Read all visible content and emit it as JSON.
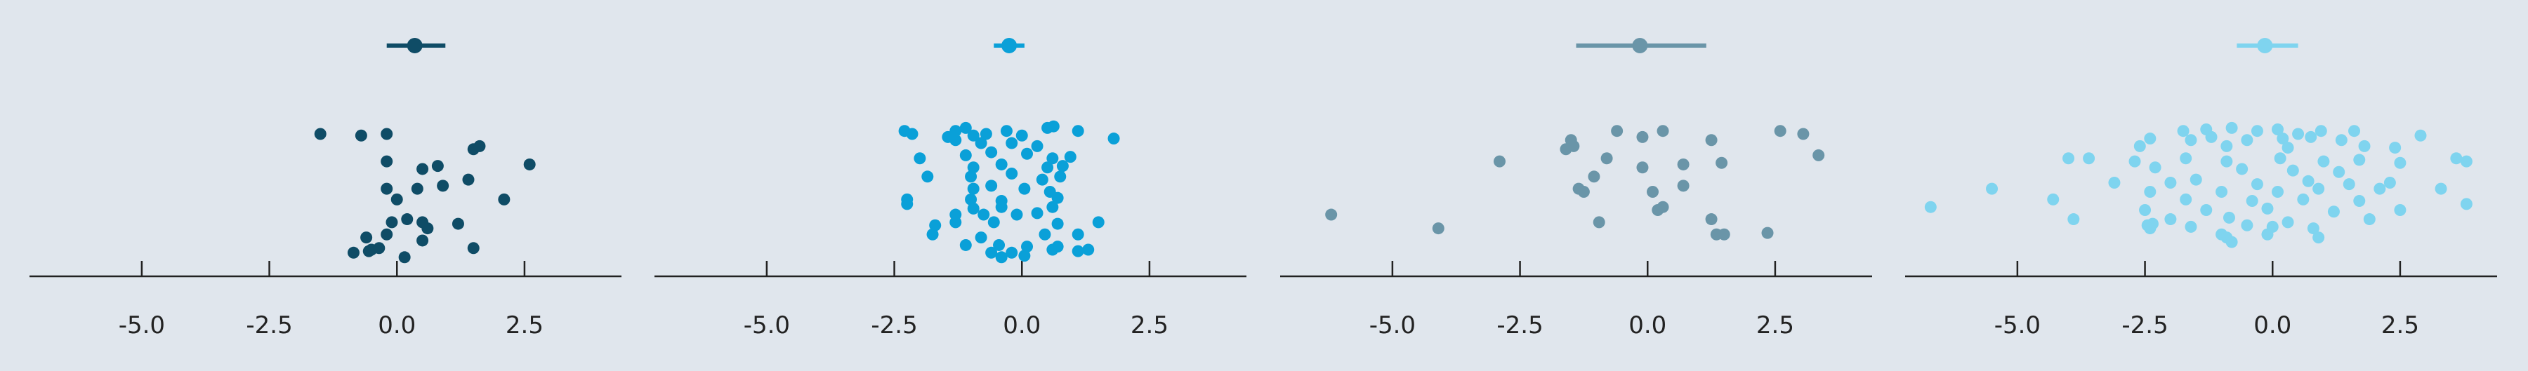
{
  "background": "#e0e6ed",
  "axis_color": "#222222",
  "chart_data": [
    {
      "type": "scatter",
      "subtype": "strip-plot-with-mean-ci",
      "color": "#0f4c66",
      "xlim": [
        -7.2,
        4.4
      ],
      "xticks": [
        -5.0,
        -2.5,
        0.0,
        2.5
      ],
      "xtick_labels": [
        "-5.0",
        "-2.5",
        "0.0",
        "2.5"
      ],
      "ci": {
        "mean": 0.35,
        "low": -0.2,
        "high": 0.95
      },
      "points": [
        {
          "x": -1.5,
          "y": 0.88
        },
        {
          "x": -0.7,
          "y": 0.87
        },
        {
          "x": -0.2,
          "y": 0.88
        },
        {
          "x": 1.5,
          "y": 0.78
        },
        {
          "x": 1.62,
          "y": 0.8
        },
        {
          "x": -0.2,
          "y": 0.7
        },
        {
          "x": 0.5,
          "y": 0.65
        },
        {
          "x": 0.8,
          "y": 0.67
        },
        {
          "x": 1.4,
          "y": 0.58
        },
        {
          "x": 2.6,
          "y": 0.68
        },
        {
          "x": -0.2,
          "y": 0.52
        },
        {
          "x": 0.4,
          "y": 0.52
        },
        {
          "x": 0.9,
          "y": 0.54
        },
        {
          "x": 0.0,
          "y": 0.45
        },
        {
          "x": 2.1,
          "y": 0.45
        },
        {
          "x": -0.1,
          "y": 0.3
        },
        {
          "x": 0.2,
          "y": 0.32
        },
        {
          "x": 0.5,
          "y": 0.3
        },
        {
          "x": 1.2,
          "y": 0.29
        },
        {
          "x": 0.6,
          "y": 0.26
        },
        {
          "x": -0.6,
          "y": 0.2
        },
        {
          "x": -0.2,
          "y": 0.22
        },
        {
          "x": 0.5,
          "y": 0.18
        },
        {
          "x": -0.5,
          "y": 0.12
        },
        {
          "x": -0.35,
          "y": 0.13
        },
        {
          "x": -0.85,
          "y": 0.1
        },
        {
          "x": 0.15,
          "y": 0.07
        },
        {
          "x": 1.5,
          "y": 0.13
        },
        {
          "x": -0.55,
          "y": 0.11
        }
      ]
    },
    {
      "type": "scatter",
      "subtype": "strip-plot-with-mean-ci",
      "color": "#0aa0d8",
      "xlim": [
        -7.2,
        4.4
      ],
      "xticks": [
        -5.0,
        -2.5,
        0.0,
        2.5
      ],
      "xtick_labels": [
        "-5.0",
        "-2.5",
        "0.0",
        "2.5"
      ],
      "ci": {
        "mean": -0.25,
        "low": -0.55,
        "high": 0.05
      },
      "points": [
        {
          "x": -2.3,
          "y": 0.9
        },
        {
          "x": -2.15,
          "y": 0.88
        },
        {
          "x": -1.45,
          "y": 0.86
        },
        {
          "x": -1.3,
          "y": 0.9
        },
        {
          "x": -1.1,
          "y": 0.92
        },
        {
          "x": -0.95,
          "y": 0.87
        },
        {
          "x": -0.7,
          "y": 0.88
        },
        {
          "x": -0.3,
          "y": 0.9
        },
        {
          "x": 0.0,
          "y": 0.87
        },
        {
          "x": 0.5,
          "y": 0.92
        },
        {
          "x": 0.62,
          "y": 0.93
        },
        {
          "x": 1.1,
          "y": 0.9
        },
        {
          "x": 1.8,
          "y": 0.85
        },
        {
          "x": -1.3,
          "y": 0.84
        },
        {
          "x": -0.8,
          "y": 0.82
        },
        {
          "x": -0.2,
          "y": 0.82
        },
        {
          "x": 0.3,
          "y": 0.8
        },
        {
          "x": -2.0,
          "y": 0.72
        },
        {
          "x": -1.1,
          "y": 0.74
        },
        {
          "x": -0.6,
          "y": 0.76
        },
        {
          "x": 0.1,
          "y": 0.75
        },
        {
          "x": 0.6,
          "y": 0.72
        },
        {
          "x": 0.95,
          "y": 0.73
        },
        {
          "x": -0.95,
          "y": 0.66
        },
        {
          "x": -0.4,
          "y": 0.68
        },
        {
          "x": 0.5,
          "y": 0.66
        },
        {
          "x": 0.8,
          "y": 0.67
        },
        {
          "x": -1.85,
          "y": 0.6
        },
        {
          "x": -1.0,
          "y": 0.6
        },
        {
          "x": -0.2,
          "y": 0.62
        },
        {
          "x": 0.4,
          "y": 0.58
        },
        {
          "x": 0.75,
          "y": 0.6
        },
        {
          "x": -0.95,
          "y": 0.52
        },
        {
          "x": -0.6,
          "y": 0.54
        },
        {
          "x": 0.05,
          "y": 0.52
        },
        {
          "x": 0.55,
          "y": 0.5
        },
        {
          "x": -2.25,
          "y": 0.45
        },
        {
          "x": -1.0,
          "y": 0.45
        },
        {
          "x": -0.4,
          "y": 0.44
        },
        {
          "x": 0.7,
          "y": 0.46
        },
        {
          "x": -2.25,
          "y": 0.42
        },
        {
          "x": -0.95,
          "y": 0.39
        },
        {
          "x": -0.4,
          "y": 0.4
        },
        {
          "x": 0.6,
          "y": 0.4
        },
        {
          "x": -1.3,
          "y": 0.35
        },
        {
          "x": -0.75,
          "y": 0.35
        },
        {
          "x": -0.1,
          "y": 0.35
        },
        {
          "x": 0.3,
          "y": 0.36
        },
        {
          "x": 1.5,
          "y": 0.3
        },
        {
          "x": -1.7,
          "y": 0.28
        },
        {
          "x": -1.3,
          "y": 0.3
        },
        {
          "x": -0.55,
          "y": 0.3
        },
        {
          "x": 0.7,
          "y": 0.29
        },
        {
          "x": -1.75,
          "y": 0.22
        },
        {
          "x": -0.8,
          "y": 0.2
        },
        {
          "x": 0.45,
          "y": 0.22
        },
        {
          "x": 1.1,
          "y": 0.22
        },
        {
          "x": -1.1,
          "y": 0.15
        },
        {
          "x": -0.45,
          "y": 0.15
        },
        {
          "x": 0.1,
          "y": 0.14
        },
        {
          "x": 0.7,
          "y": 0.14
        },
        {
          "x": 1.3,
          "y": 0.12
        },
        {
          "x": -0.6,
          "y": 0.1
        },
        {
          "x": -0.2,
          "y": 0.1
        },
        {
          "x": 0.6,
          "y": 0.12
        },
        {
          "x": 1.1,
          "y": 0.11
        },
        {
          "x": -0.4,
          "y": 0.07
        },
        {
          "x": 0.05,
          "y": 0.08
        }
      ]
    },
    {
      "type": "scatter",
      "subtype": "strip-plot-with-mean-ci",
      "color": "#6a95a8",
      "xlim": [
        -7.2,
        4.4
      ],
      "xticks": [
        -5.0,
        -2.5,
        0.0,
        2.5
      ],
      "xtick_labels": [
        "-5.0",
        "-2.5",
        "0.0",
        "2.5"
      ],
      "ci": {
        "mean": -0.15,
        "low": -1.4,
        "high": 1.15
      },
      "points": [
        {
          "x": -0.6,
          "y": 0.9
        },
        {
          "x": 0.3,
          "y": 0.9
        },
        {
          "x": 2.6,
          "y": 0.9
        },
        {
          "x": 3.05,
          "y": 0.88
        },
        {
          "x": -1.5,
          "y": 0.84
        },
        {
          "x": -0.1,
          "y": 0.86
        },
        {
          "x": 1.25,
          "y": 0.84
        },
        {
          "x": -1.6,
          "y": 0.78
        },
        {
          "x": -1.45,
          "y": 0.8
        },
        {
          "x": 3.35,
          "y": 0.74
        },
        {
          "x": -0.8,
          "y": 0.72
        },
        {
          "x": -2.9,
          "y": 0.7
        },
        {
          "x": 0.7,
          "y": 0.68
        },
        {
          "x": 1.45,
          "y": 0.69
        },
        {
          "x": -0.1,
          "y": 0.66
        },
        {
          "x": -1.05,
          "y": 0.6
        },
        {
          "x": -1.35,
          "y": 0.52
        },
        {
          "x": -1.25,
          "y": 0.5
        },
        {
          "x": 0.7,
          "y": 0.54
        },
        {
          "x": 0.1,
          "y": 0.5
        },
        {
          "x": 0.3,
          "y": 0.4
        },
        {
          "x": 0.2,
          "y": 0.38
        },
        {
          "x": 1.25,
          "y": 0.32
        },
        {
          "x": -0.95,
          "y": 0.3
        },
        {
          "x": -6.2,
          "y": 0.35
        },
        {
          "x": -4.1,
          "y": 0.26
        },
        {
          "x": 2.35,
          "y": 0.23
        },
        {
          "x": 1.35,
          "y": 0.22
        },
        {
          "x": 1.5,
          "y": 0.22
        }
      ]
    },
    {
      "type": "scatter",
      "subtype": "strip-plot-with-mean-ci",
      "color": "#7fd4ef",
      "xlim": [
        -7.2,
        4.4
      ],
      "xticks": [
        -5.0,
        -2.5,
        0.0,
        2.5
      ],
      "xtick_labels": [
        "-5.0",
        "-2.5",
        "0.0",
        "2.5"
      ],
      "ci": {
        "mean": -0.15,
        "low": -0.7,
        "high": 0.5
      },
      "points": [
        {
          "x": -1.75,
          "y": 0.9
        },
        {
          "x": -1.3,
          "y": 0.91
        },
        {
          "x": -0.8,
          "y": 0.92
        },
        {
          "x": -0.3,
          "y": 0.9
        },
        {
          "x": 0.1,
          "y": 0.91
        },
        {
          "x": 0.5,
          "y": 0.88
        },
        {
          "x": 0.95,
          "y": 0.9
        },
        {
          "x": 1.6,
          "y": 0.9
        },
        {
          "x": 2.9,
          "y": 0.87
        },
        {
          "x": -2.4,
          "y": 0.85
        },
        {
          "x": -1.6,
          "y": 0.84
        },
        {
          "x": -1.2,
          "y": 0.86
        },
        {
          "x": -0.5,
          "y": 0.84
        },
        {
          "x": 0.2,
          "y": 0.85
        },
        {
          "x": 0.75,
          "y": 0.86
        },
        {
          "x": 1.35,
          "y": 0.84
        },
        {
          "x": -2.6,
          "y": 0.8
        },
        {
          "x": -0.9,
          "y": 0.8
        },
        {
          "x": 0.3,
          "y": 0.79
        },
        {
          "x": 1.8,
          "y": 0.8
        },
        {
          "x": 2.4,
          "y": 0.79
        },
        {
          "x": -4.0,
          "y": 0.72
        },
        {
          "x": -3.6,
          "y": 0.72
        },
        {
          "x": -2.7,
          "y": 0.7
        },
        {
          "x": -1.7,
          "y": 0.72
        },
        {
          "x": -0.9,
          "y": 0.7
        },
        {
          "x": 0.15,
          "y": 0.72
        },
        {
          "x": 1.0,
          "y": 0.7
        },
        {
          "x": 1.7,
          "y": 0.71
        },
        {
          "x": 2.5,
          "y": 0.69
        },
        {
          "x": 3.6,
          "y": 0.72
        },
        {
          "x": 3.8,
          "y": 0.7
        },
        {
          "x": -2.3,
          "y": 0.66
        },
        {
          "x": -0.6,
          "y": 0.65
        },
        {
          "x": 0.4,
          "y": 0.64
        },
        {
          "x": 1.3,
          "y": 0.63
        },
        {
          "x": -3.1,
          "y": 0.56
        },
        {
          "x": -2.0,
          "y": 0.56
        },
        {
          "x": -1.5,
          "y": 0.58
        },
        {
          "x": -0.3,
          "y": 0.55
        },
        {
          "x": 0.7,
          "y": 0.57
        },
        {
          "x": 1.5,
          "y": 0.55
        },
        {
          "x": 2.3,
          "y": 0.56
        },
        {
          "x": -5.5,
          "y": 0.52
        },
        {
          "x": -2.4,
          "y": 0.5
        },
        {
          "x": -1.0,
          "y": 0.5
        },
        {
          "x": 0.1,
          "y": 0.5
        },
        {
          "x": 0.9,
          "y": 0.52
        },
        {
          "x": 2.1,
          "y": 0.52
        },
        {
          "x": 3.3,
          "y": 0.52
        },
        {
          "x": -4.3,
          "y": 0.45
        },
        {
          "x": -1.7,
          "y": 0.45
        },
        {
          "x": -0.4,
          "y": 0.44
        },
        {
          "x": 0.6,
          "y": 0.45
        },
        {
          "x": 1.7,
          "y": 0.44
        },
        {
          "x": 3.8,
          "y": 0.42
        },
        {
          "x": -6.7,
          "y": 0.4
        },
        {
          "x": -2.5,
          "y": 0.38
        },
        {
          "x": -1.3,
          "y": 0.38
        },
        {
          "x": -0.1,
          "y": 0.39
        },
        {
          "x": 1.2,
          "y": 0.37
        },
        {
          "x": 2.5,
          "y": 0.38
        },
        {
          "x": -3.9,
          "y": 0.32
        },
        {
          "x": -2.0,
          "y": 0.32
        },
        {
          "x": -0.85,
          "y": 0.33
        },
        {
          "x": 0.3,
          "y": 0.3
        },
        {
          "x": 1.9,
          "y": 0.32
        },
        {
          "x": -2.45,
          "y": 0.28
        },
        {
          "x": -2.35,
          "y": 0.29
        },
        {
          "x": -1.6,
          "y": 0.27
        },
        {
          "x": -0.5,
          "y": 0.28
        },
        {
          "x": 0.0,
          "y": 0.27
        },
        {
          "x": 0.8,
          "y": 0.26
        },
        {
          "x": -2.4,
          "y": 0.26
        },
        {
          "x": -1.0,
          "y": 0.22
        },
        {
          "x": -0.9,
          "y": 0.2
        },
        {
          "x": -0.1,
          "y": 0.22
        },
        {
          "x": 0.9,
          "y": 0.2
        },
        {
          "x": -0.8,
          "y": 0.17
        }
      ]
    }
  ]
}
